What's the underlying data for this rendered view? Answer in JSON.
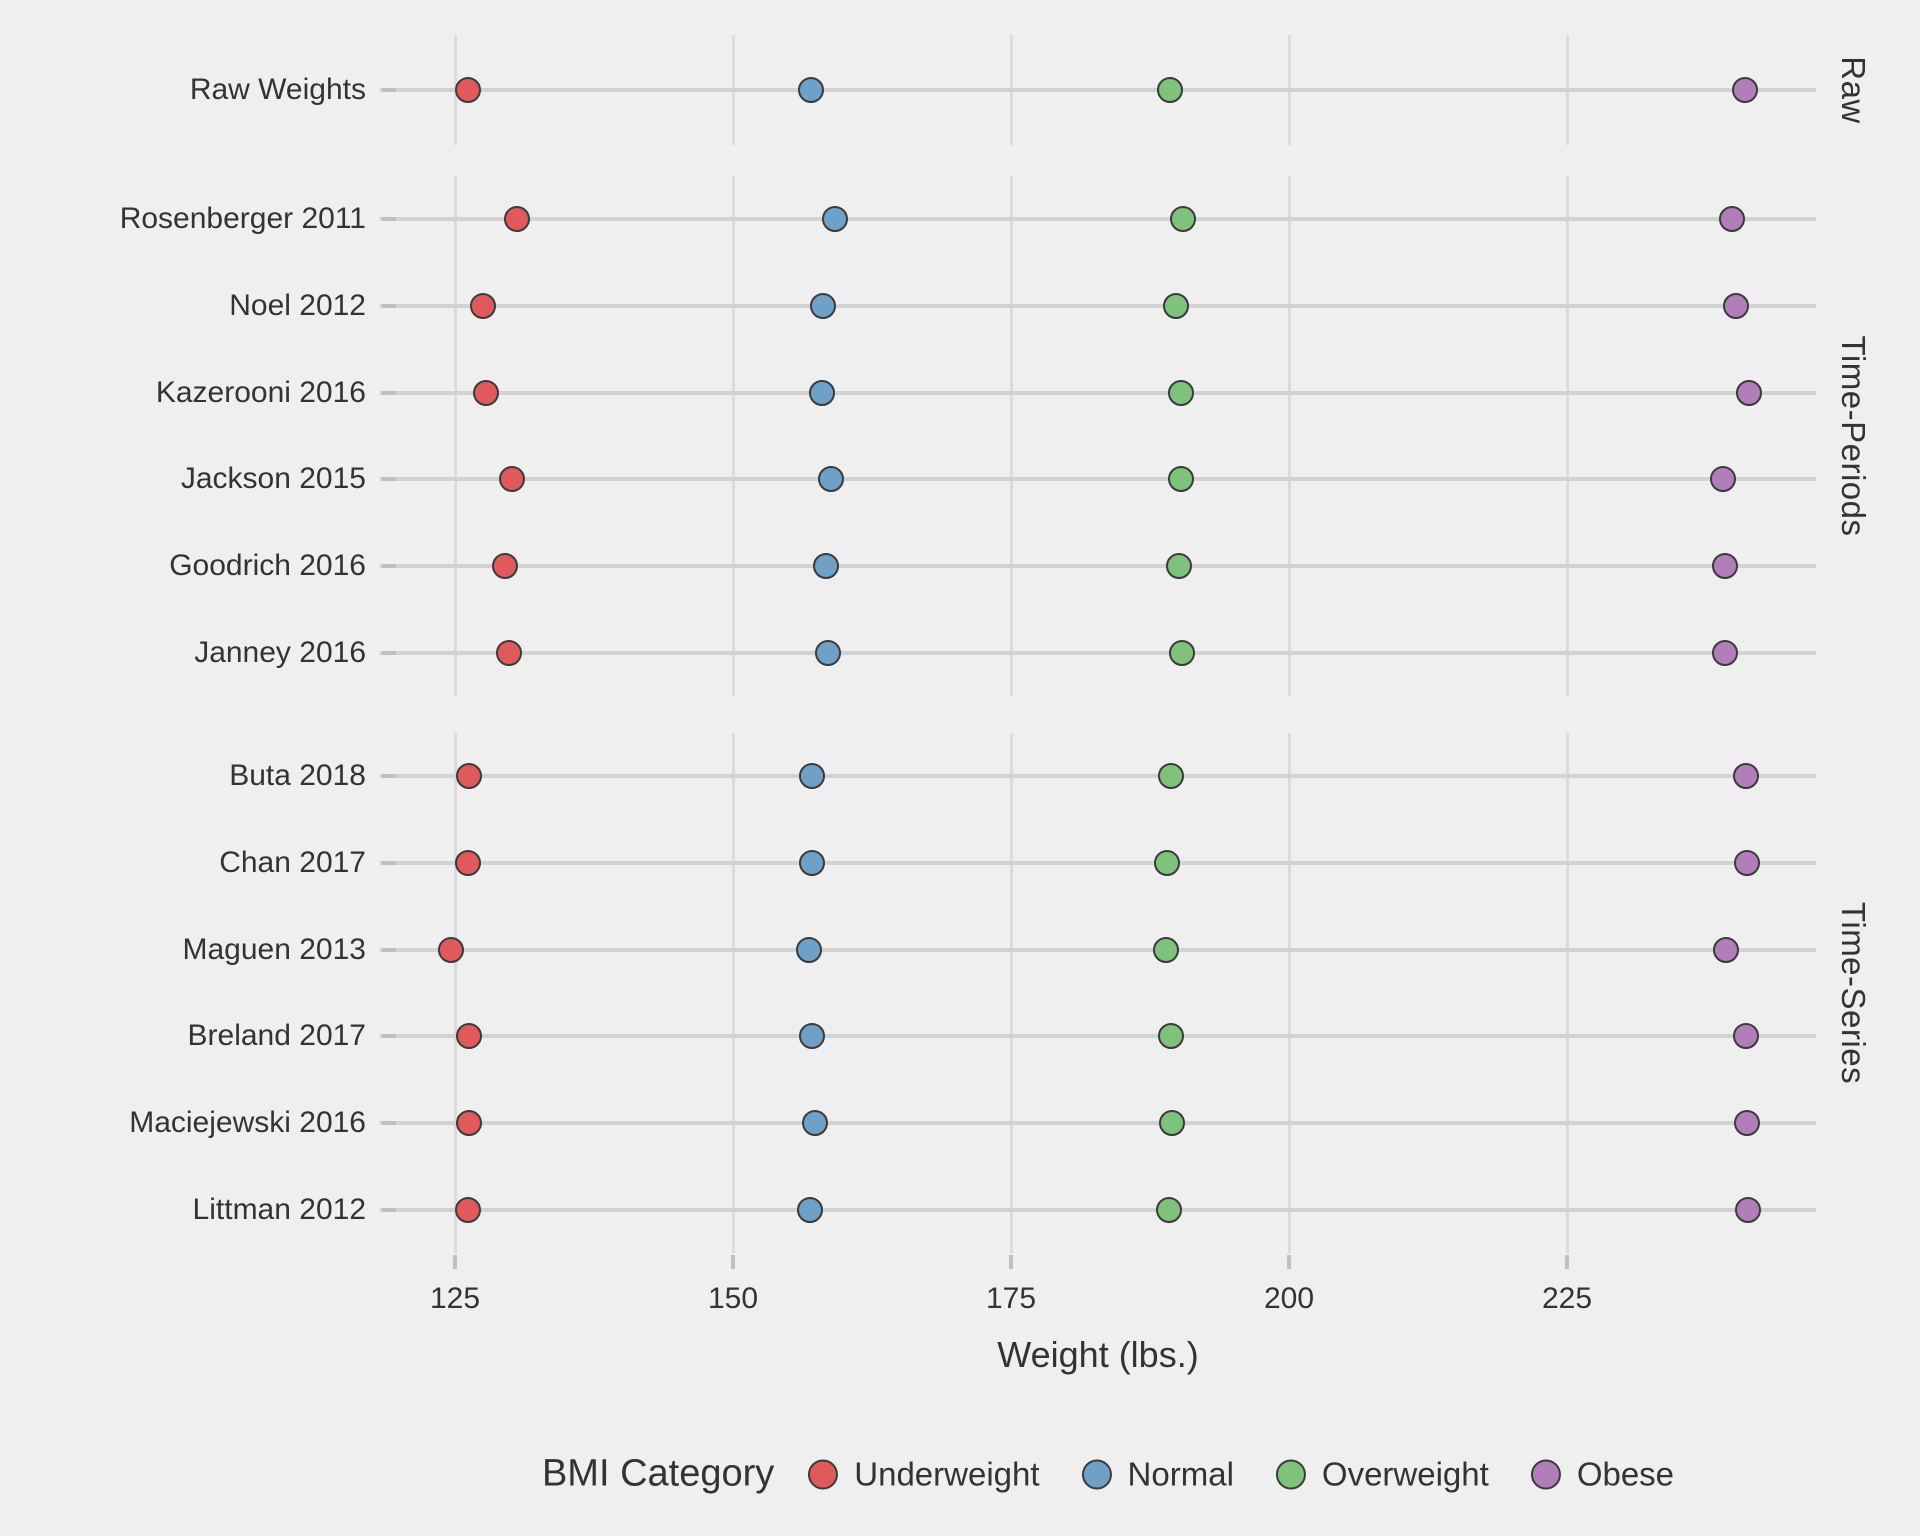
{
  "chart_data": {
    "type": "scatter",
    "title": "",
    "xlabel": "Weight (lbs.)",
    "ylabel": "",
    "x_ticks": [
      125,
      150,
      175,
      200,
      225
    ],
    "xlim": [
      118.3,
      247.4
    ],
    "grid": "on",
    "legend_position": "bottom",
    "legend_title": "BMI Category",
    "categories": [
      "Underweight",
      "Normal",
      "Overweight",
      "Obese"
    ],
    "category_colors": [
      "#e0595b",
      "#6ea0c8",
      "#7ec27c",
      "#b27eba"
    ],
    "point_outline_color": "#3b3b3b",
    "background_color": "#efefef",
    "gridline_color": "#dbdbdb",
    "rowline_color": "#d2d2d2",
    "text_color": "#333333",
    "panels": [
      {
        "label": "Raw",
        "rows": [
          {
            "label": "Raw Weights",
            "values": [
              126.2,
              157.0,
              189.3,
              241.0
            ]
          }
        ]
      },
      {
        "label": "Time-Periods",
        "rows": [
          {
            "label": "Rosenberger 2011",
            "values": [
              130.6,
              159.2,
              190.5,
              239.8
            ]
          },
          {
            "label": "Noel 2012",
            "values": [
              127.5,
              158.1,
              189.8,
              240.2
            ]
          },
          {
            "label": "Kazerooni 2016",
            "values": [
              127.8,
              158.0,
              190.3,
              241.4
            ]
          },
          {
            "label": "Jackson 2015",
            "values": [
              130.1,
              158.8,
              190.3,
              239.0
            ]
          },
          {
            "label": "Goodrich 2016",
            "values": [
              129.5,
              158.4,
              190.1,
              239.2
            ]
          },
          {
            "label": "Janney 2016",
            "values": [
              129.9,
              158.5,
              190.4,
              239.2
            ]
          }
        ]
      },
      {
        "label": "Time-Series",
        "rows": [
          {
            "label": "Buta 2018",
            "values": [
              126.3,
              157.1,
              189.4,
              241.1
            ]
          },
          {
            "label": "Chan 2017",
            "values": [
              126.2,
              157.1,
              189.0,
              241.2
            ]
          },
          {
            "label": "Maguen 2013",
            "values": [
              124.6,
              156.8,
              188.9,
              239.3
            ]
          },
          {
            "label": "Breland 2017",
            "values": [
              126.3,
              157.1,
              189.4,
              241.1
            ]
          },
          {
            "label": "Maciejewski 2016",
            "values": [
              126.3,
              157.4,
              189.5,
              241.2
            ]
          },
          {
            "label": "Littman 2012",
            "values": [
              126.2,
              156.9,
              189.2,
              241.3
            ]
          }
        ]
      }
    ]
  }
}
